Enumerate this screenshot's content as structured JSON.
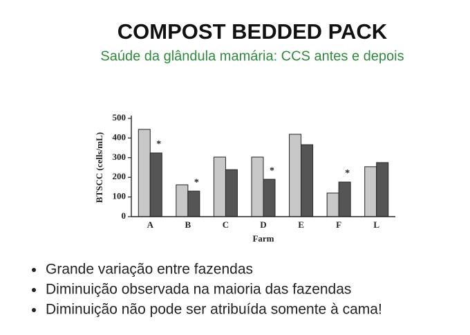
{
  "title": "COMPOST BEDDED PACK",
  "subtitle": "Saúde da glândula mamária: CCS antes e depois",
  "bullets": [
    "Grande variação entre fazendas",
    "Diminuição observada na maioria das fazendas",
    "Diminuição não pode ser atribuída somente à cama!"
  ],
  "chart_data": {
    "type": "bar",
    "categories": [
      "A",
      "B",
      "C",
      "D",
      "E",
      "F",
      "L"
    ],
    "series": [
      {
        "color": "#c8c8c8",
        "values": [
          444,
          162,
          303,
          303,
          419,
          120,
          254
        ]
      },
      {
        "color": "#555555",
        "values": [
          324,
          130,
          239,
          190,
          366,
          176,
          275
        ]
      }
    ],
    "x_label": "Farm",
    "y_label": "BTSCC (cells/mL)",
    "ylim": [
      0,
      500
    ],
    "yticks": [
      0,
      100,
      200,
      300,
      400,
      500
    ],
    "annotations": [
      {
        "x": "A",
        "text": "*"
      },
      {
        "x": "B",
        "text": "*"
      },
      {
        "x": "D",
        "text": "*"
      },
      {
        "x": "F",
        "text": "*"
      }
    ]
  }
}
